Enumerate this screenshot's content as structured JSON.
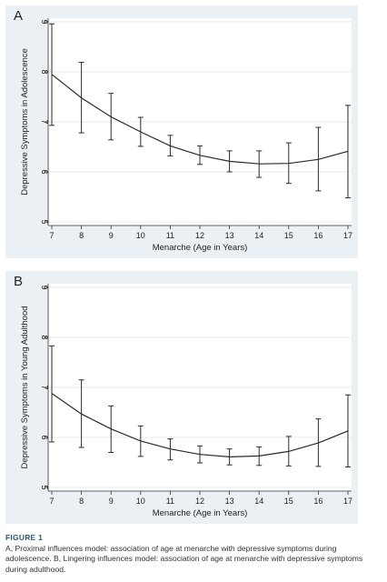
{
  "chart_data": [
    {
      "type": "line",
      "panel_label": "A",
      "xlabel": "Menarche (Age in Years)",
      "ylabel": "Depressive Symptoms in Adolescence",
      "xlim": [
        7,
        17
      ],
      "ylim": [
        5,
        9
      ],
      "xticks": [
        7,
        8,
        9,
        10,
        11,
        12,
        13,
        14,
        15,
        16,
        17
      ],
      "yticks": [
        5,
        6,
        7,
        8,
        9
      ],
      "grid": true,
      "error_bars": true,
      "series": [
        {
          "x": [
            7,
            8,
            9,
            10,
            11,
            12,
            13,
            14,
            15,
            16,
            17
          ],
          "values": [
            7.95,
            7.48,
            7.1,
            6.8,
            6.52,
            6.33,
            6.21,
            6.16,
            6.17,
            6.25,
            6.41
          ],
          "lower": [
            6.93,
            6.78,
            6.64,
            6.51,
            6.32,
            6.15,
            6.0,
            5.89,
            5.77,
            5.62,
            5.48
          ],
          "upper": [
            8.96,
            8.19,
            7.57,
            7.09,
            6.73,
            6.52,
            6.42,
            6.42,
            6.58,
            6.89,
            7.33
          ]
        }
      ]
    },
    {
      "type": "line",
      "panel_label": "B",
      "xlabel": "Menarche (Age in Years)",
      "ylabel": "Depressive Symptoms in Young Adulthood",
      "xlim": [
        7,
        17
      ],
      "ylim": [
        5,
        9
      ],
      "xticks": [
        7,
        8,
        9,
        10,
        11,
        12,
        13,
        14,
        15,
        16,
        17
      ],
      "yticks": [
        5,
        6,
        7,
        8,
        9
      ],
      "grid": true,
      "error_bars": true,
      "series": [
        {
          "x": [
            7,
            8,
            9,
            10,
            11,
            12,
            13,
            14,
            15,
            16,
            17
          ],
          "values": [
            6.88,
            6.47,
            6.17,
            5.93,
            5.77,
            5.66,
            5.61,
            5.63,
            5.72,
            5.89,
            6.13
          ],
          "lower": [
            5.91,
            5.8,
            5.7,
            5.62,
            5.55,
            5.49,
            5.45,
            5.44,
            5.43,
            5.42,
            5.41
          ],
          "upper": [
            7.83,
            7.15,
            6.63,
            6.23,
            5.97,
            5.83,
            5.77,
            5.81,
            6.02,
            6.37,
            6.85
          ]
        }
      ]
    }
  ],
  "caption": {
    "title": "FIGURE 1",
    "text": "A, Proximal influences model: association of age at menarche with depressive symptoms during adolescence. B, Lingering influences model: association of age at menarche with depressive symptoms during adulthood."
  },
  "colors": {
    "panel_bg": "#eaf0f4",
    "plot_bg": "#ffffff",
    "line": "#2b2b2b",
    "grid": "#e4e9ec",
    "caption_title": "#2a5a74"
  }
}
